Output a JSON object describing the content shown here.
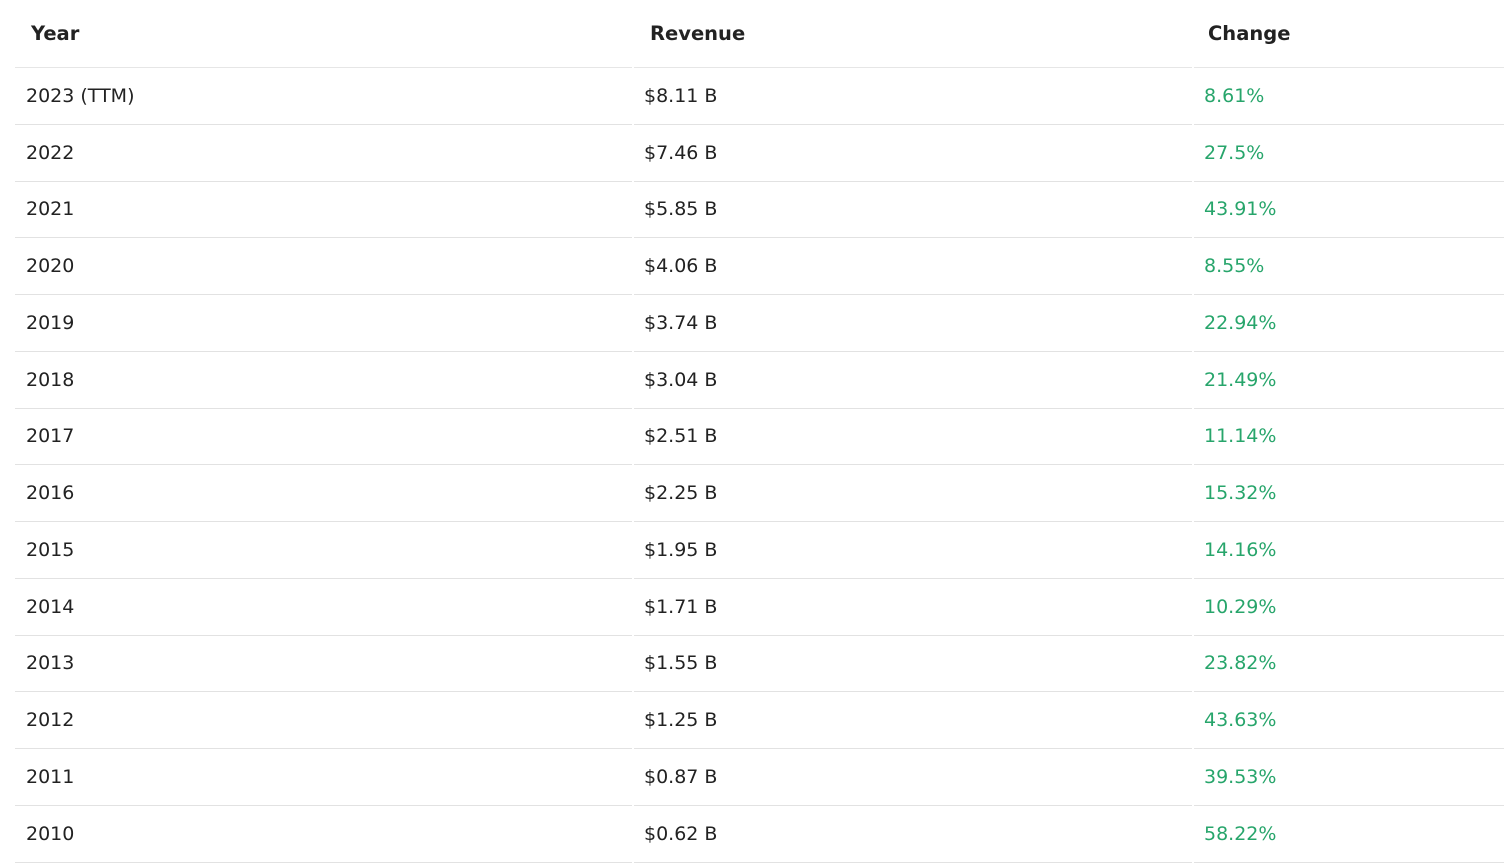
{
  "table": {
    "headers": [
      "Year",
      "Revenue",
      "Change"
    ],
    "positive_color": "#27a56b",
    "rows": [
      {
        "year": "2023 (TTM)",
        "revenue": "$8.11 B",
        "change": "8.61%"
      },
      {
        "year": "2022",
        "revenue": "$7.46 B",
        "change": "27.5%"
      },
      {
        "year": "2021",
        "revenue": "$5.85 B",
        "change": "43.91%"
      },
      {
        "year": "2020",
        "revenue": "$4.06 B",
        "change": "8.55%"
      },
      {
        "year": "2019",
        "revenue": "$3.74 B",
        "change": "22.94%"
      },
      {
        "year": "2018",
        "revenue": "$3.04 B",
        "change": "21.49%"
      },
      {
        "year": "2017",
        "revenue": "$2.51 B",
        "change": "11.14%"
      },
      {
        "year": "2016",
        "revenue": "$2.25 B",
        "change": "15.32%"
      },
      {
        "year": "2015",
        "revenue": "$1.95 B",
        "change": "14.16%"
      },
      {
        "year": "2014",
        "revenue": "$1.71 B",
        "change": "10.29%"
      },
      {
        "year": "2013",
        "revenue": "$1.55 B",
        "change": "23.82%"
      },
      {
        "year": "2012",
        "revenue": "$1.25 B",
        "change": "43.63%"
      },
      {
        "year": "2011",
        "revenue": "$0.87 B",
        "change": "39.53%"
      },
      {
        "year": "2010",
        "revenue": "$0.62 B",
        "change": "58.22%"
      }
    ]
  }
}
